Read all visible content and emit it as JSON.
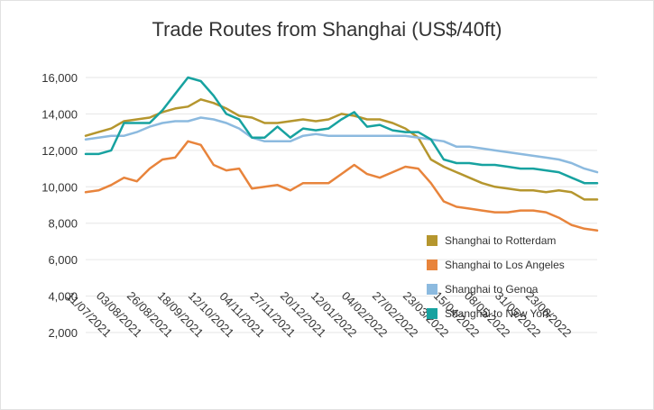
{
  "chart_data": {
    "type": "line",
    "title": "Trade Routes from Shanghai (US$/40ft)",
    "xlabel": "",
    "ylabel": "",
    "ylim": [
      2000,
      16000
    ],
    "yticks": [
      "2,000",
      "4,000",
      "6,000",
      "8,000",
      "10,000",
      "12,000",
      "14,000",
      "16,000"
    ],
    "y_tick_values": [
      2000,
      4000,
      6000,
      8000,
      10000,
      12000,
      14000,
      16000
    ],
    "x_tick_labels": [
      "11/07/2021",
      "03/08/2021",
      "26/08/2021",
      "18/09/2021",
      "12/10/2021",
      "04/11/2021",
      "27/11/2021",
      "20/12/2021",
      "12/01/2022",
      "04/02/2022",
      "27/02/2022",
      "23/03/2022",
      "15/04/2022",
      "08/05/2022",
      "31/05/2022",
      "23/06/2022"
    ],
    "grid": true,
    "legend_position": "right",
    "series": [
      {
        "name": "Shanghai to Rotterdam",
        "color": "#b5962e",
        "values": [
          12800,
          13000,
          13200,
          13600,
          13700,
          13800,
          14100,
          14300,
          14400,
          14800,
          14600,
          14300,
          13900,
          13800,
          13500,
          13500,
          13600,
          13700,
          13600,
          13700,
          14000,
          13900,
          13700,
          13700,
          13500,
          13200,
          12700,
          11500,
          11100,
          10800,
          10500,
          10200,
          10000,
          9900,
          9800,
          9800,
          9700,
          9800,
          9700,
          9300,
          9300
        ]
      },
      {
        "name": "Shanghai to Los Angeles",
        "color": "#e8843c",
        "values": [
          9700,
          9800,
          10100,
          10500,
          10300,
          11000,
          11500,
          11600,
          12500,
          12300,
          11200,
          10900,
          11000,
          9900,
          10000,
          10100,
          9800,
          10200,
          10200,
          10200,
          10700,
          11200,
          10700,
          10500,
          10800,
          11100,
          11000,
          10200,
          9200,
          8900,
          8800,
          8700,
          8600,
          8600,
          8700,
          8700,
          8600,
          8300,
          7900,
          7700,
          7600
        ]
      },
      {
        "name": "Shanghai to Genoa",
        "color": "#8cbadf",
        "values": [
          12600,
          12700,
          12800,
          12800,
          13000,
          13300,
          13500,
          13600,
          13600,
          13800,
          13700,
          13500,
          13200,
          12700,
          12500,
          12500,
          12500,
          12800,
          12900,
          12800,
          12800,
          12800,
          12800,
          12800,
          12800,
          12800,
          12700,
          12600,
          12500,
          12200,
          12200,
          12100,
          12000,
          11900,
          11800,
          11700,
          11600,
          11500,
          11300,
          11000,
          10800
        ]
      },
      {
        "name": "Shanghai to New York",
        "color": "#17a2a0",
        "values": [
          11800,
          11800,
          12000,
          13500,
          13500,
          13500,
          14200,
          15100,
          16000,
          15800,
          15000,
          14000,
          13700,
          12700,
          12700,
          13300,
          12700,
          13200,
          13100,
          13200,
          13700,
          14100,
          13300,
          13400,
          13100,
          13000,
          13000,
          12600,
          11500,
          11300,
          11300,
          11200,
          11200,
          11100,
          11000,
          11000,
          10900,
          10800,
          10500,
          10200,
          10200
        ]
      }
    ]
  }
}
